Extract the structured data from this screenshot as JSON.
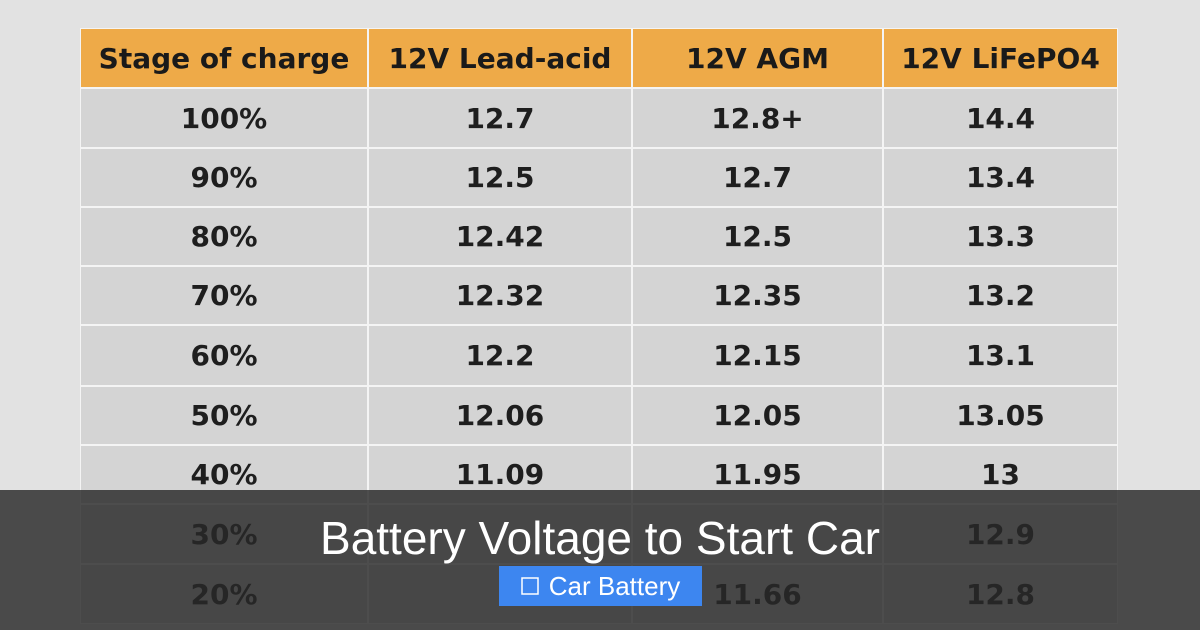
{
  "table": {
    "header": [
      "Stage of charge",
      "12V Lead-acid",
      "12V AGM",
      "12V LiFePO4"
    ],
    "rows": [
      [
        "100%",
        "12.7",
        "12.8+",
        "14.4"
      ],
      [
        "90%",
        "12.5",
        "12.7",
        "13.4"
      ],
      [
        "80%",
        "12.42",
        "12.5",
        "13.3"
      ],
      [
        "70%",
        "12.32",
        "12.35",
        "13.2"
      ],
      [
        "60%",
        "12.2",
        "12.15",
        "13.1"
      ],
      [
        "50%",
        "12.06",
        "12.05",
        "13.05"
      ],
      [
        "40%",
        "11.09",
        "11.95",
        "13"
      ],
      [
        "30%",
        null,
        null,
        "12.9"
      ],
      [
        "20%",
        null,
        "11.66",
        "12.8"
      ]
    ]
  },
  "overlay": {
    "title": "Battery Voltage to Start Car",
    "badge": "Car Battery"
  }
}
